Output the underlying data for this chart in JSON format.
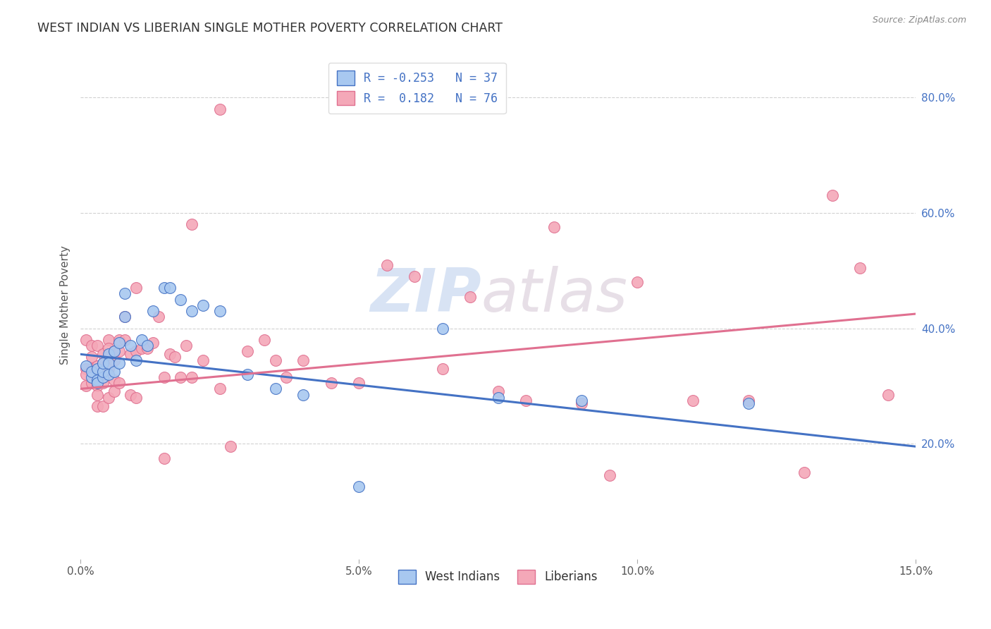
{
  "title": "WEST INDIAN VS LIBERIAN SINGLE MOTHER POVERTY CORRELATION CHART",
  "source": "Source: ZipAtlas.com",
  "ylabel": "Single Mother Poverty",
  "y_ticks": [
    0.2,
    0.4,
    0.6,
    0.8
  ],
  "x_range": [
    0.0,
    0.15
  ],
  "y_range": [
    0.0,
    0.88
  ],
  "west_indian_R": -0.253,
  "west_indian_N": 37,
  "liberian_R": 0.182,
  "liberian_N": 76,
  "west_indian_color": "#A8C8F0",
  "liberian_color": "#F4A8B8",
  "west_indian_line_color": "#4472C4",
  "liberian_line_color": "#E07090",
  "legend_label_west": "West Indians",
  "legend_label_lib": "Liberians",
  "watermark_zip": "ZIP",
  "watermark_atlas": "atlas",
  "wi_line_x0": 0.0,
  "wi_line_y0": 0.355,
  "wi_line_x1": 0.15,
  "wi_line_y1": 0.195,
  "lib_line_x0": 0.0,
  "lib_line_y0": 0.295,
  "lib_line_x1": 0.15,
  "lib_line_y1": 0.425,
  "west_indian_x": [
    0.001,
    0.002,
    0.002,
    0.003,
    0.003,
    0.003,
    0.004,
    0.004,
    0.004,
    0.005,
    0.005,
    0.005,
    0.006,
    0.006,
    0.007,
    0.007,
    0.008,
    0.008,
    0.009,
    0.01,
    0.011,
    0.012,
    0.013,
    0.015,
    0.016,
    0.018,
    0.02,
    0.022,
    0.025,
    0.03,
    0.035,
    0.04,
    0.05,
    0.065,
    0.075,
    0.09,
    0.12
  ],
  "west_indian_y": [
    0.335,
    0.315,
    0.325,
    0.31,
    0.305,
    0.33,
    0.315,
    0.325,
    0.34,
    0.355,
    0.32,
    0.34,
    0.36,
    0.325,
    0.375,
    0.34,
    0.42,
    0.46,
    0.37,
    0.345,
    0.38,
    0.37,
    0.43,
    0.47,
    0.47,
    0.45,
    0.43,
    0.44,
    0.43,
    0.32,
    0.295,
    0.285,
    0.125,
    0.4,
    0.28,
    0.275,
    0.27
  ],
  "liberian_x": [
    0.001,
    0.001,
    0.001,
    0.001,
    0.002,
    0.002,
    0.002,
    0.002,
    0.003,
    0.003,
    0.003,
    0.003,
    0.003,
    0.004,
    0.004,
    0.004,
    0.004,
    0.004,
    0.005,
    0.005,
    0.005,
    0.005,
    0.005,
    0.006,
    0.006,
    0.006,
    0.006,
    0.007,
    0.007,
    0.007,
    0.008,
    0.008,
    0.009,
    0.009,
    0.01,
    0.01,
    0.011,
    0.012,
    0.013,
    0.014,
    0.015,
    0.016,
    0.017,
    0.018,
    0.019,
    0.02,
    0.022,
    0.025,
    0.027,
    0.03,
    0.033,
    0.035,
    0.037,
    0.04,
    0.045,
    0.05,
    0.055,
    0.06,
    0.065,
    0.07,
    0.075,
    0.08,
    0.085,
    0.09,
    0.095,
    0.1,
    0.11,
    0.12,
    0.13,
    0.135,
    0.14,
    0.145,
    0.01,
    0.015,
    0.02,
    0.025
  ],
  "liberian_y": [
    0.38,
    0.33,
    0.32,
    0.3,
    0.37,
    0.35,
    0.33,
    0.305,
    0.37,
    0.335,
    0.3,
    0.285,
    0.265,
    0.355,
    0.34,
    0.32,
    0.305,
    0.265,
    0.38,
    0.365,
    0.35,
    0.33,
    0.28,
    0.36,
    0.345,
    0.31,
    0.29,
    0.38,
    0.36,
    0.305,
    0.42,
    0.38,
    0.355,
    0.285,
    0.36,
    0.28,
    0.365,
    0.365,
    0.375,
    0.42,
    0.315,
    0.355,
    0.35,
    0.315,
    0.37,
    0.315,
    0.345,
    0.295,
    0.195,
    0.36,
    0.38,
    0.345,
    0.315,
    0.345,
    0.305,
    0.305,
    0.51,
    0.49,
    0.33,
    0.455,
    0.29,
    0.275,
    0.575,
    0.27,
    0.145,
    0.48,
    0.275,
    0.275,
    0.15,
    0.63,
    0.505,
    0.285,
    0.47,
    0.175,
    0.58,
    0.78
  ]
}
